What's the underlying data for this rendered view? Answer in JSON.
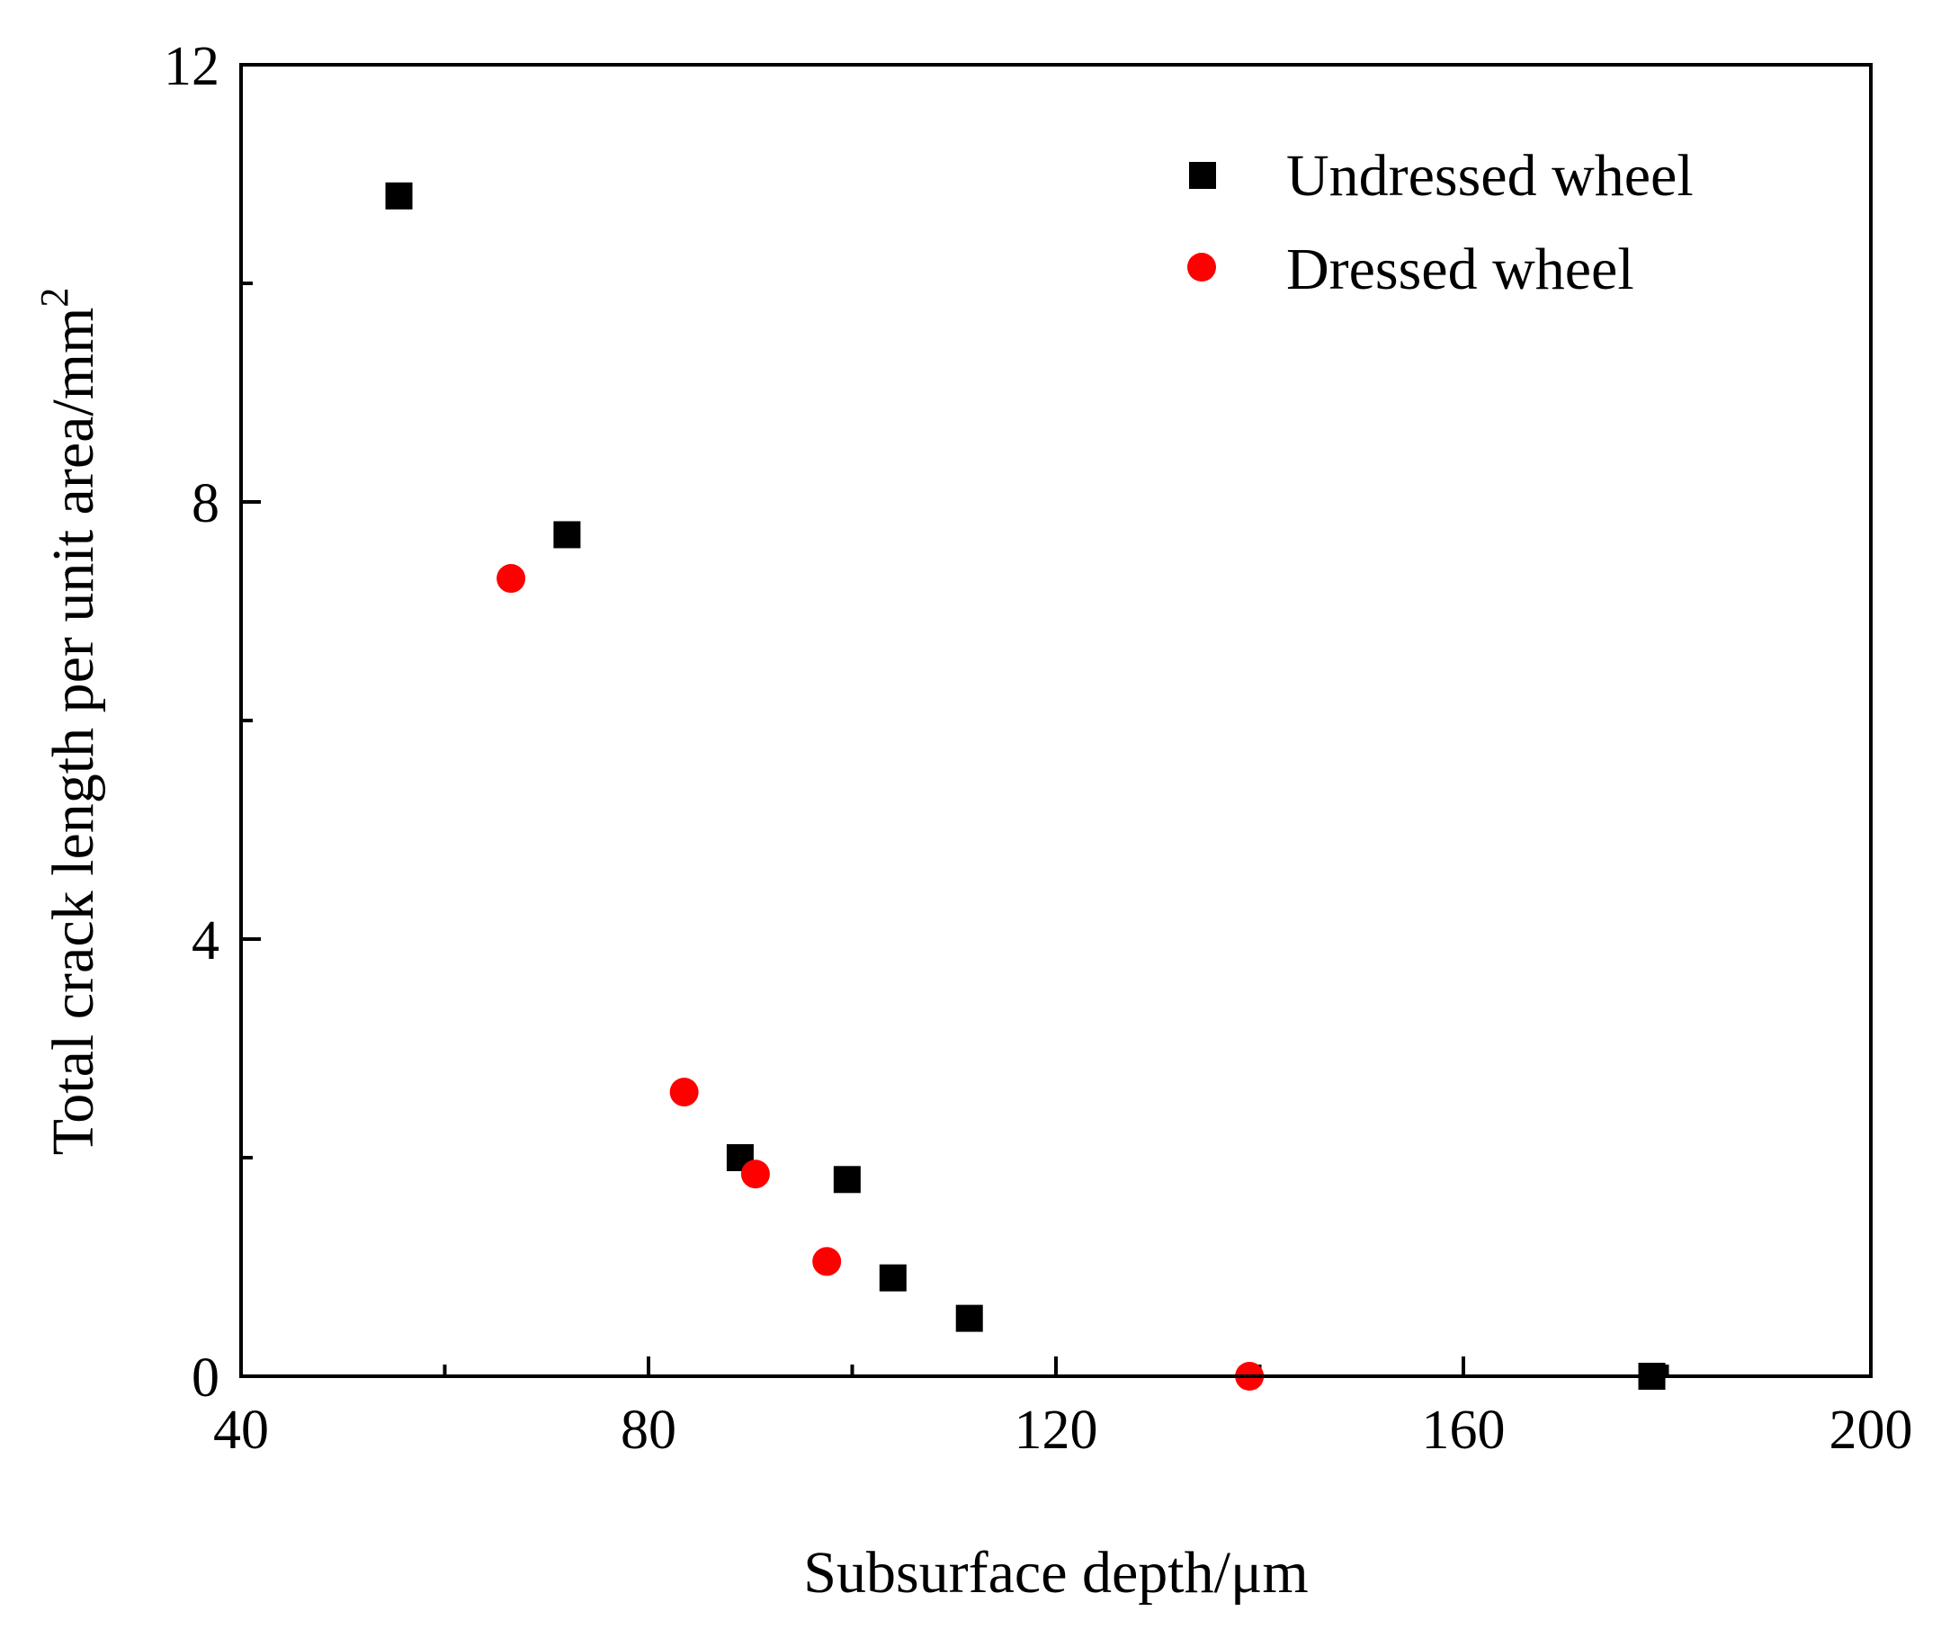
{
  "colors": {
    "undressed": "#000000",
    "dressed": "#ff0000",
    "axis": "#000000",
    "background": "#ffffff"
  },
  "chart_data": {
    "type": "scatter",
    "title": "",
    "xlabel": "Subsurface depth/μm",
    "ylabel_main": "Total crack length per unit area/mm",
    "ylabel_superscript": "2",
    "xlim": [
      40,
      200
    ],
    "ylim": [
      0,
      12
    ],
    "x_ticks": [
      40,
      80,
      120,
      160,
      200
    ],
    "x_tick_labels": [
      "40",
      "80",
      "120",
      "160",
      "200"
    ],
    "x_minor_ticks": [
      60,
      100,
      140,
      180
    ],
    "y_ticks": [
      0,
      4,
      8,
      12
    ],
    "y_tick_labels": [
      "0",
      "4",
      "8",
      "12"
    ],
    "y_minor_ticks": [
      2,
      6,
      10
    ],
    "grid": false,
    "legend_position": "top-right",
    "series": [
      {
        "name": "Undressed wheel",
        "marker": "square",
        "color": "#000000",
        "points": [
          {
            "x": 55.5,
            "y": 10.8
          },
          {
            "x": 72,
            "y": 7.7
          },
          {
            "x": 89,
            "y": 2.0
          },
          {
            "x": 99.5,
            "y": 1.8
          },
          {
            "x": 104,
            "y": 0.9
          },
          {
            "x": 111.5,
            "y": 0.53
          },
          {
            "x": 178.5,
            "y": 0.0
          }
        ]
      },
      {
        "name": "Dressed wheel",
        "marker": "circle",
        "color": "#ff0000",
        "points": [
          {
            "x": 66.5,
            "y": 7.3
          },
          {
            "x": 83.5,
            "y": 2.6
          },
          {
            "x": 90.5,
            "y": 1.85
          },
          {
            "x": 97.5,
            "y": 1.05
          },
          {
            "x": 139,
            "y": 0.0
          }
        ]
      }
    ]
  }
}
